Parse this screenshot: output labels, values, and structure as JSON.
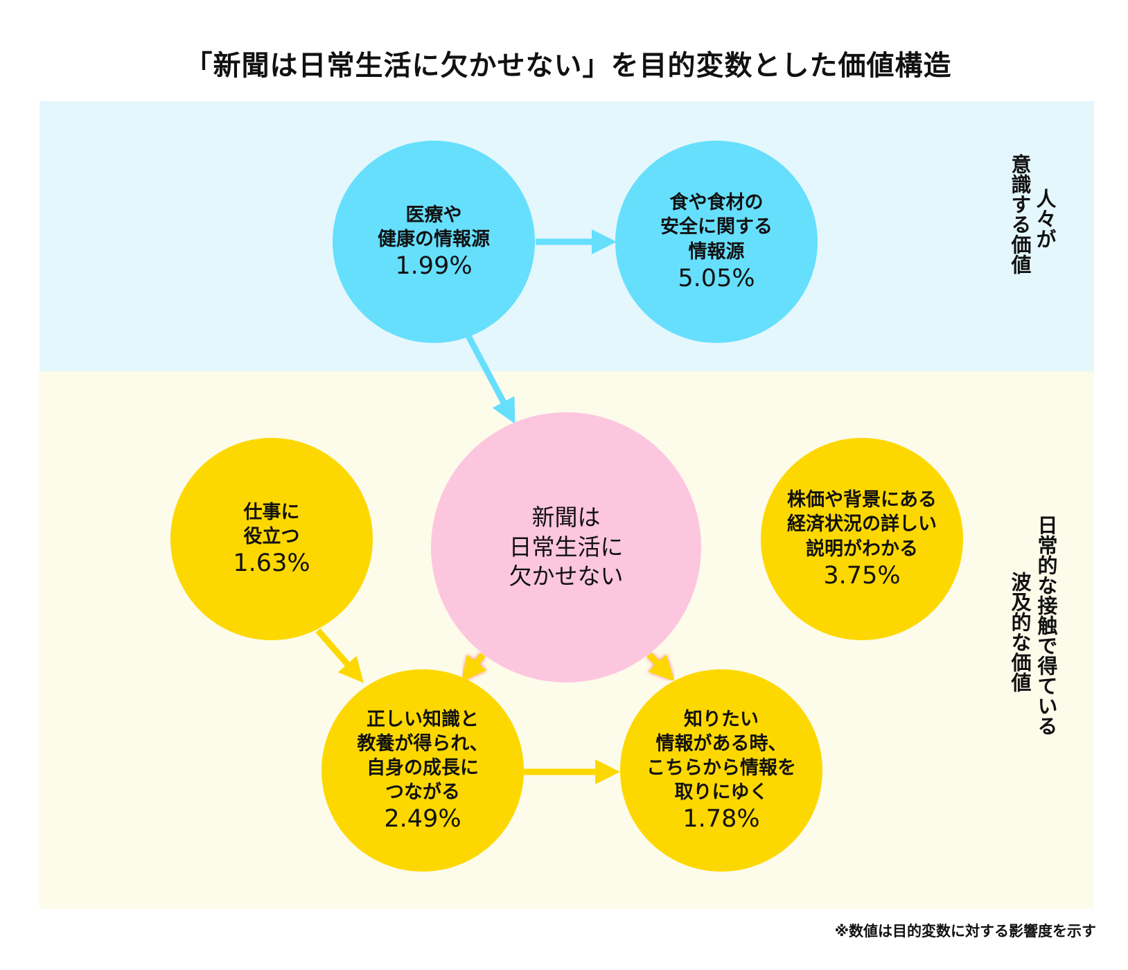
{
  "title": "「新聞は日常生活に欠かせない」を目的変数とした価値構造",
  "colors": {
    "top_band": "#e4f7fd",
    "bottom_band": "#fdfbea",
    "blue": "#66dffd",
    "yellow": "#fdd800",
    "pink": "#fdc6df"
  },
  "sections": {
    "top": {
      "line1": "人々が",
      "line2": "意識する価値"
    },
    "bottom": {
      "line1": "日常的な接触で得ている",
      "line2": "波及的な価値"
    }
  },
  "nodes": {
    "medical": {
      "label": [
        "医療や",
        "健康の情報源"
      ],
      "value": "1.99%"
    },
    "food": {
      "label": [
        "食や食材の",
        "安全に関する",
        "情報源"
      ],
      "value": "5.05%"
    },
    "center": {
      "label": [
        "新聞は",
        "日常生活に",
        "欠かせない"
      ]
    },
    "work": {
      "label": [
        "仕事に",
        "役立つ"
      ],
      "value": "1.63%"
    },
    "stock": {
      "label": [
        "株価や背景にある",
        "経済状況の詳しい",
        "説明がわかる"
      ],
      "value": "3.75%"
    },
    "knowledge": {
      "label": [
        "正しい知識と",
        "教養が得られ、",
        "自身の成長に",
        "つながる"
      ],
      "value": "2.49%"
    },
    "info": {
      "label": [
        "知りたい",
        "情報がある時、",
        "こちらから情報を",
        "取りにゆく"
      ],
      "value": "1.78%"
    }
  },
  "edges": [
    {
      "from": "medical",
      "to": "food"
    },
    {
      "from": "medical",
      "to": "center"
    },
    {
      "from": "center",
      "to": "work"
    },
    {
      "from": "center",
      "to": "stock"
    },
    {
      "from": "center",
      "to": "knowledge"
    },
    {
      "from": "center",
      "to": "info"
    },
    {
      "from": "work",
      "to": "knowledge"
    },
    {
      "from": "knowledge",
      "to": "info"
    }
  ],
  "note": "※数値は目的変数に対する影響度を示す"
}
